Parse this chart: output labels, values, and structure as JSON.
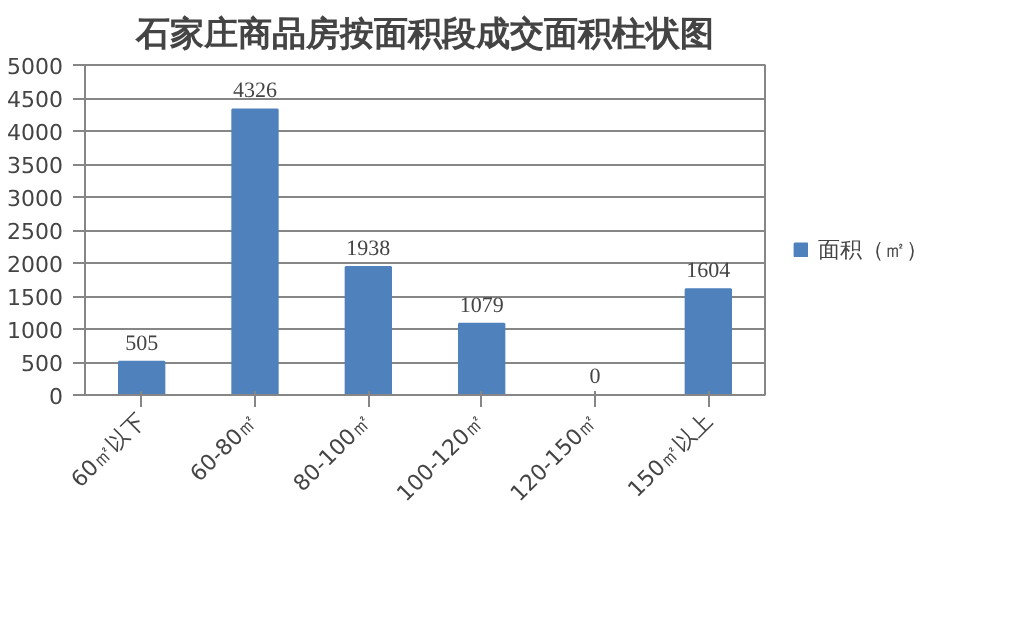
{
  "chart_data": {
    "type": "bar",
    "title": "石家庄商品房按面积段成交面积柱状图",
    "categories": [
      "60㎡以下",
      "60-80㎡",
      "80-100㎡",
      "100-120㎡",
      "120-150㎡",
      "150㎡以上"
    ],
    "series": [
      {
        "name": "面积（㎡）",
        "color": "#4f81bd",
        "values": [
          505,
          4326,
          1938,
          1079,
          0,
          1604
        ]
      }
    ],
    "ylim": [
      0,
      5000
    ],
    "yticks": [
      0,
      500,
      1000,
      1500,
      2000,
      2500,
      3000,
      3500,
      4000,
      4500,
      5000
    ],
    "grid": "y",
    "legend": "right",
    "data_labels": true
  }
}
